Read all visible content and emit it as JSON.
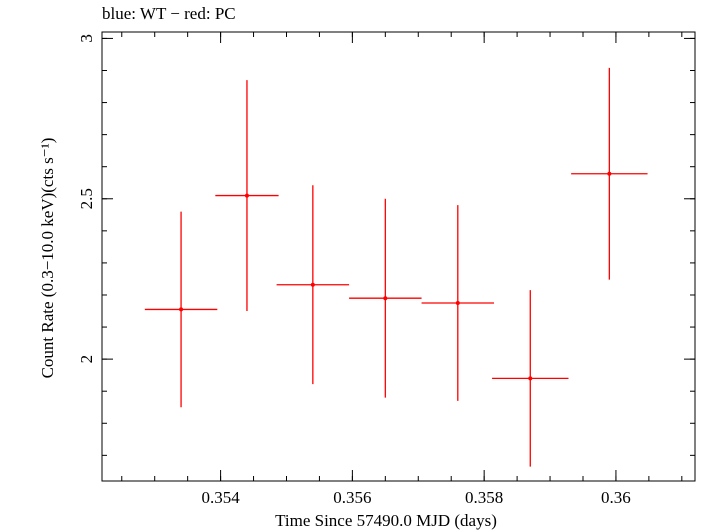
{
  "chart_data": {
    "type": "scatter",
    "title": "blue: WT − red: PC",
    "xlabel": "Time Since 57490.0 MJD (days)",
    "ylabel": "Count Rate (0.3−10.0 keV)(cts s⁻¹)",
    "xlim": [
      0.3522,
      0.3612
    ],
    "ylim": [
      1.62,
      3.02
    ],
    "x_ticks": [
      0.354,
      0.356,
      0.358,
      0.36
    ],
    "x_tick_labels": [
      "0.354",
      "0.356",
      "0.358",
      "0.36"
    ],
    "y_ticks": [
      2,
      2.5,
      3
    ],
    "y_tick_labels": [
      "2",
      "2.5",
      "3"
    ],
    "x_minor_step": 0.0005,
    "y_minor_step": 0.1,
    "grid": false,
    "series": [
      {
        "color": "#ff0000",
        "points": [
          {
            "x": 0.3534,
            "y": 2.155,
            "xerr": 0.00055,
            "yerr_low": 0.305,
            "yerr_high": 0.305
          },
          {
            "x": 0.3544,
            "y": 2.51,
            "xerr": 0.00048,
            "yerr_low": 0.36,
            "yerr_high": 0.36
          },
          {
            "x": 0.3554,
            "y": 2.232,
            "xerr": 0.00055,
            "yerr_low": 0.31,
            "yerr_high": 0.31
          },
          {
            "x": 0.3565,
            "y": 2.19,
            "xerr": 0.00055,
            "yerr_low": 0.31,
            "yerr_high": 0.31
          },
          {
            "x": 0.3576,
            "y": 2.175,
            "xerr": 0.00055,
            "yerr_low": 0.305,
            "yerr_high": 0.305
          },
          {
            "x": 0.3587,
            "y": 1.94,
            "xerr": 0.00058,
            "yerr_low": 0.275,
            "yerr_high": 0.275
          },
          {
            "x": 0.3599,
            "y": 2.578,
            "xerr": 0.00058,
            "yerr_low": 0.33,
            "yerr_high": 0.33
          }
        ]
      }
    ]
  }
}
